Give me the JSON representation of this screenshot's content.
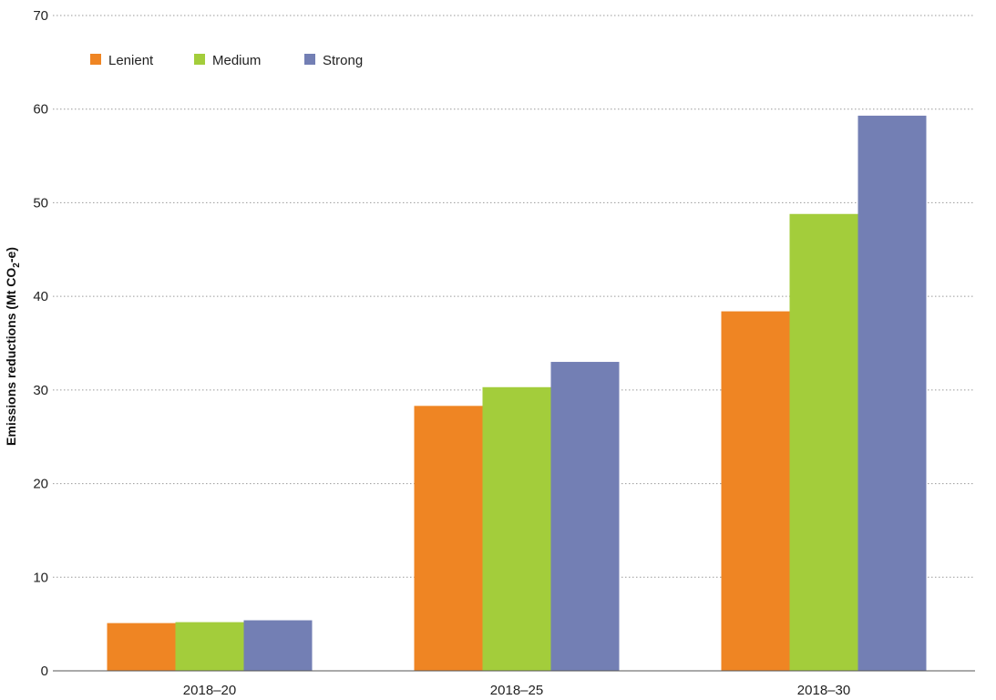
{
  "colors": {
    "lenient": "#ef8523",
    "medium": "#a3cd3b",
    "strong": "#737fb4"
  },
  "chart_data": {
    "type": "bar",
    "categories": [
      "2018–20",
      "2018–25",
      "2018–30"
    ],
    "series": [
      {
        "name": "Lenient",
        "values": [
          5.1,
          28.3,
          38.4
        ]
      },
      {
        "name": "Medium",
        "values": [
          5.2,
          30.3,
          48.8
        ]
      },
      {
        "name": "Strong",
        "values": [
          5.4,
          33.0,
          59.3
        ]
      }
    ],
    "ylabel_main": "Emissions reductions (Mt CO",
    "ylabel_sub": "2",
    "ylabel_end": "-e)",
    "ylim": [
      0,
      70
    ],
    "yticks": [
      "0",
      "10",
      "20",
      "30",
      "40",
      "50",
      "60",
      "70"
    ],
    "grid": true,
    "legend_position": "top-left"
  }
}
